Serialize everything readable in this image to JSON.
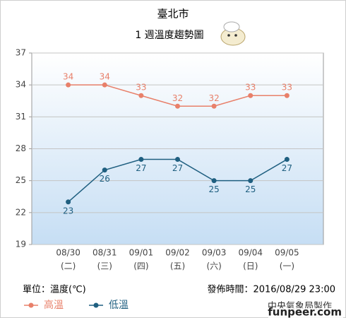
{
  "chart_data": {
    "type": "line",
    "title": "臺北市",
    "subtitle": "1 週溫度趨勢圖",
    "categories": [
      "08/30",
      "08/31",
      "09/01",
      "09/02",
      "09/03",
      "09/04",
      "09/05"
    ],
    "category_sublabels": [
      "(二)",
      "(三)",
      "(四)",
      "(五)",
      "(六)",
      "(日)",
      "(一)"
    ],
    "series": [
      {
        "name": "高溫",
        "color": "#e8806a",
        "values": [
          34,
          34,
          33,
          32,
          32,
          33,
          33
        ]
      },
      {
        "name": "低溫",
        "color": "#1f5f80",
        "values": [
          23,
          26,
          27,
          27,
          25,
          25,
          27
        ]
      }
    ],
    "ylim": [
      19,
      37
    ],
    "yticks": [
      19,
      22,
      25,
      28,
      31,
      34,
      37
    ],
    "grid": true,
    "unit_note": "單位：溫度(℃)",
    "publish_time": "發佈時間：2016/08/29 23:00",
    "credit": "中央氣象局製作",
    "watermark": "funpeer.com"
  }
}
